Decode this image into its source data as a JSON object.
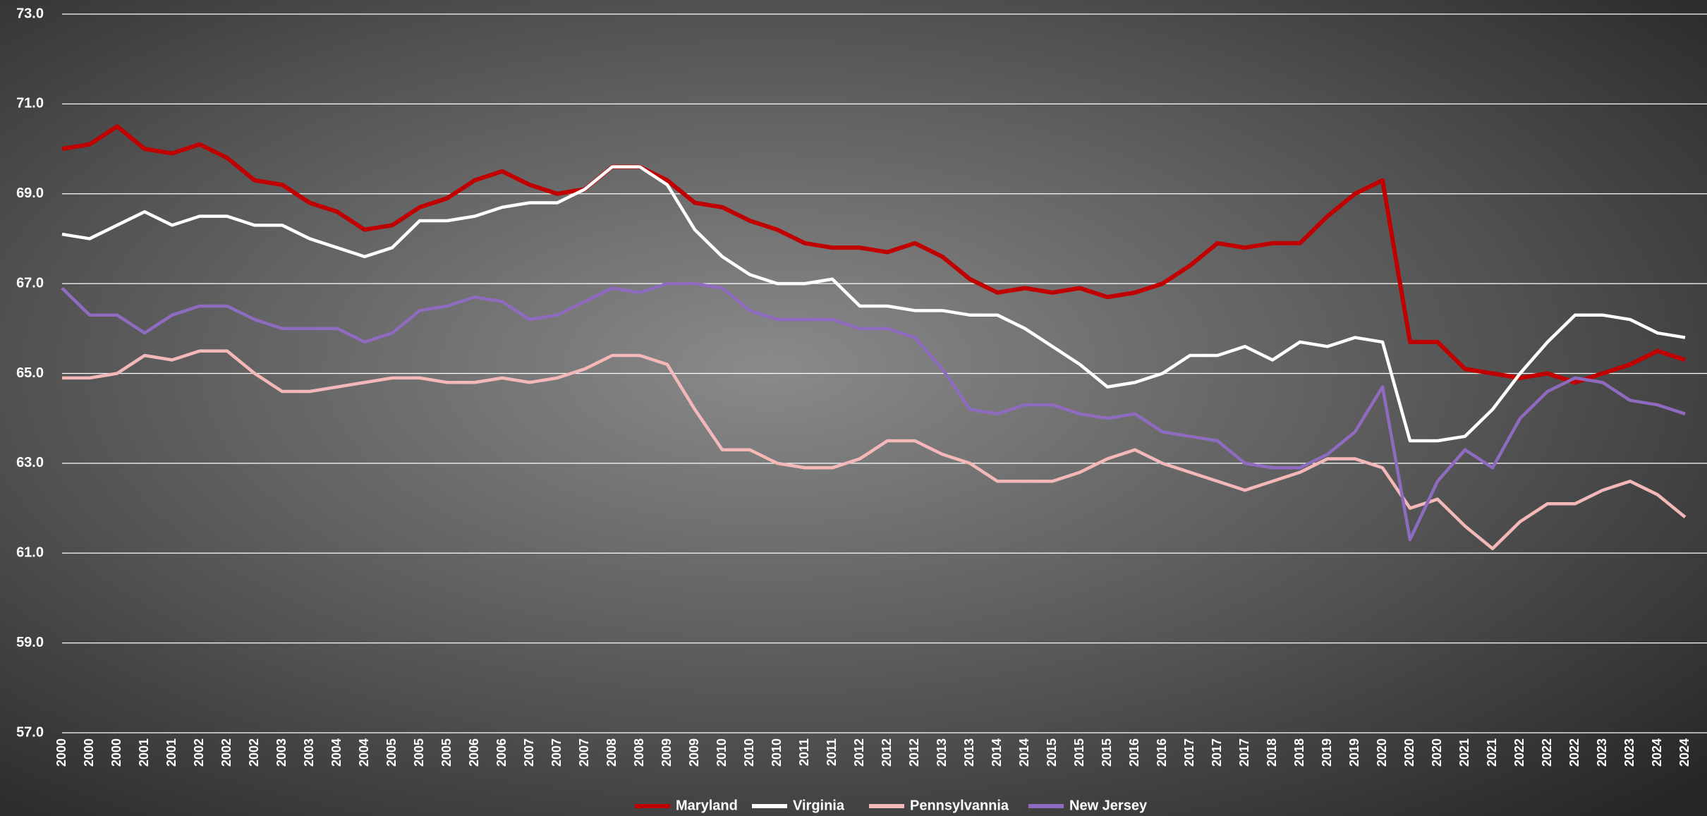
{
  "chart_data": {
    "type": "line",
    "categories": [
      "2000",
      "2000",
      "2000",
      "2001",
      "2001",
      "2002",
      "2002",
      "2002",
      "2003",
      "2003",
      "2004",
      "2004",
      "2005",
      "2005",
      "2005",
      "2006",
      "2006",
      "2007",
      "2007",
      "2007",
      "2008",
      "2008",
      "2009",
      "2009",
      "2010",
      "2010",
      "2010",
      "2011",
      "2011",
      "2012",
      "2012",
      "2012",
      "2013",
      "2013",
      "2014",
      "2014",
      "2015",
      "2015",
      "2015",
      "2016",
      "2016",
      "2017",
      "2017",
      "2017",
      "2018",
      "2018",
      "2019",
      "2019",
      "2020",
      "2020",
      "2020",
      "2021",
      "2021",
      "2022",
      "2022",
      "2022",
      "2023",
      "2023",
      "2024",
      "2024"
    ],
    "ylim": [
      57,
      73
    ],
    "yticks": [
      {
        "value": 57,
        "label": "57.0"
      },
      {
        "value": 59,
        "label": "59.0"
      },
      {
        "value": 61,
        "label": "61.0"
      },
      {
        "value": 63,
        "label": "63.0"
      },
      {
        "value": 65,
        "label": "65.0"
      },
      {
        "value": 67,
        "label": "67.0"
      },
      {
        "value": 69,
        "label": "69.0"
      },
      {
        "value": 71,
        "label": "71.0"
      },
      {
        "value": 73,
        "label": "73.0"
      }
    ],
    "grid": true,
    "legend": "bottom",
    "series": [
      {
        "name": "Maryland",
        "color": "#c00000",
        "values": [
          70.0,
          70.1,
          70.5,
          70.0,
          69.9,
          70.1,
          69.8,
          69.3,
          69.2,
          68.8,
          68.6,
          68.2,
          68.3,
          68.7,
          68.9,
          69.3,
          69.5,
          69.2,
          69.0,
          69.1,
          69.6,
          69.6,
          69.3,
          68.8,
          68.7,
          68.4,
          68.2,
          67.9,
          67.8,
          67.8,
          67.7,
          67.9,
          67.6,
          67.1,
          66.8,
          66.9,
          66.8,
          66.9,
          66.7,
          66.8,
          67.0,
          67.4,
          67.9,
          67.8,
          67.9,
          67.9,
          68.5,
          69.0,
          69.3,
          65.7,
          65.7,
          65.1,
          65.0,
          64.9,
          65.0,
          64.8,
          65.0,
          65.2,
          65.5,
          65.3
        ]
      },
      {
        "name": "Virginia",
        "color": "#ffffff",
        "values": [
          68.1,
          68.0,
          68.3,
          68.6,
          68.3,
          68.5,
          68.5,
          68.3,
          68.3,
          68.0,
          67.8,
          67.6,
          67.8,
          68.4,
          68.4,
          68.5,
          68.7,
          68.8,
          68.8,
          69.1,
          69.6,
          69.6,
          69.2,
          68.2,
          67.6,
          67.2,
          67.0,
          67.0,
          67.1,
          66.5,
          66.5,
          66.4,
          66.4,
          66.3,
          66.3,
          66.0,
          65.6,
          65.2,
          64.7,
          64.8,
          65.0,
          65.4,
          65.4,
          65.6,
          65.3,
          65.7,
          65.6,
          65.8,
          65.7,
          63.5,
          63.5,
          63.6,
          64.2,
          65.0,
          65.7,
          66.3,
          66.3,
          66.2,
          65.9,
          65.8
        ]
      },
      {
        "name": "Pennsylvannia",
        "color": "#f4b8b8",
        "values": [
          64.9,
          64.9,
          65.0,
          65.4,
          65.3,
          65.5,
          65.5,
          65.0,
          64.6,
          64.6,
          64.7,
          64.8,
          64.9,
          64.9,
          64.8,
          64.8,
          64.9,
          64.8,
          64.9,
          65.1,
          65.4,
          65.4,
          65.2,
          64.2,
          63.3,
          63.3,
          63.0,
          62.9,
          62.9,
          63.1,
          63.5,
          63.5,
          63.2,
          63.0,
          62.6,
          62.6,
          62.6,
          62.8,
          63.1,
          63.3,
          63.0,
          62.8,
          62.6,
          62.4,
          62.6,
          62.8,
          63.1,
          63.1,
          62.9,
          62.0,
          62.2,
          61.6,
          61.1,
          61.7,
          62.1,
          62.1,
          62.4,
          62.6,
          62.3,
          61.8
        ]
      },
      {
        "name": "New Jersey",
        "color": "#8e6bbf",
        "values": [
          66.9,
          66.3,
          66.3,
          65.9,
          66.3,
          66.5,
          66.5,
          66.2,
          66.0,
          66.0,
          66.0,
          65.7,
          65.9,
          66.4,
          66.5,
          66.7,
          66.6,
          66.2,
          66.3,
          66.6,
          66.9,
          66.8,
          67.0,
          67.0,
          66.9,
          66.4,
          66.2,
          66.2,
          66.2,
          66.0,
          66.0,
          65.8,
          65.1,
          64.2,
          64.1,
          64.3,
          64.3,
          64.1,
          64.0,
          64.1,
          63.7,
          63.6,
          63.5,
          63.0,
          62.9,
          62.9,
          63.2,
          63.7,
          64.7,
          61.3,
          62.6,
          63.3,
          62.9,
          64.0,
          64.6,
          64.9,
          64.8,
          64.4,
          64.3,
          64.1
        ]
      }
    ]
  }
}
